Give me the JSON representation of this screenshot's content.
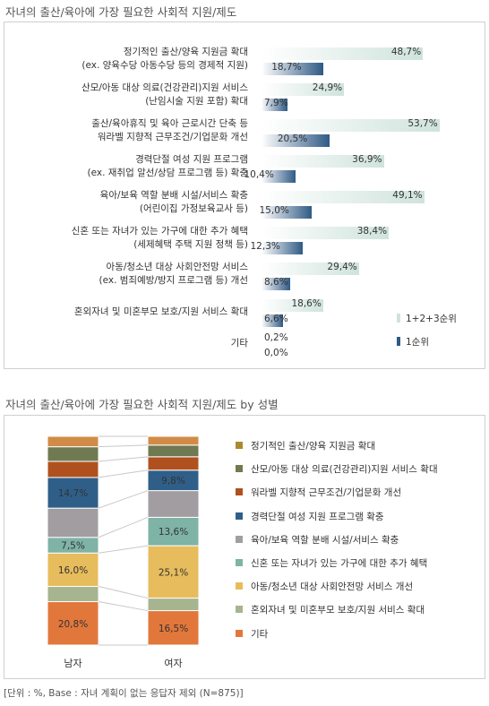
{
  "chart_data": [
    {
      "type": "bar",
      "title": "자녀의 출산/육아에 가장 필요한 사회적 지원/제도",
      "categories": [
        [
          "정기적인 출산/양육 지원금 확대",
          "(ex. 양육수당 아동수당 등의 경제적 지원)"
        ],
        [
          "산모/아동 대상 의료(건강관리)지원 서비스",
          "(난임시술 지원 포함) 확대"
        ],
        [
          "출산/육아휴직 및 육아 근로시간 단축 등",
          "워라벨 지향적 근무조건/기업문화 개선"
        ],
        [
          "경력단절 여성 지원 프로그램",
          "(ex. 재취업 알선/상담 프로그램 등) 확충"
        ],
        [
          "육아/보육 역할 분배 시설/서비스 확충",
          "(어린이집 가정보육교사 등)"
        ],
        [
          "신혼 또는 자녀가 있는 가구에 대한 추가 혜택",
          "(세제혜택 주택 지원 정책 등)"
        ],
        [
          "아동/청소년 대상 사회안전망 서비스",
          "(ex. 범죄예방/방지 프로그램 등) 개선"
        ],
        [
          "혼외자녀 및 미혼부모 보호/지원 서비스 확대"
        ],
        [
          "기타"
        ]
      ],
      "series": [
        {
          "name": "1+2+3순위",
          "values": [
            48.7,
            24.9,
            53.7,
            36.9,
            49.1,
            38.4,
            29.4,
            18.6,
            0.2
          ],
          "labels": [
            "48,7%",
            "24,9%",
            "53,7%",
            "36,9%",
            "49,1%",
            "38,4%",
            "29,4%",
            "18,6%",
            "0,2%"
          ],
          "color": "#cfe3dd"
        },
        {
          "name": "1순위",
          "values": [
            18.7,
            7.9,
            20.5,
            10.4,
            15.0,
            12.3,
            8.6,
            6.6,
            0.0
          ],
          "labels": [
            "18,7%",
            "7,9%",
            "20,5%",
            "10,4%",
            "15,0%",
            "12,3%",
            "8,6%",
            "6,6%",
            "0,0%"
          ],
          "color": "#2f5a85"
        }
      ]
    },
    {
      "type": "bar",
      "stacked": true,
      "percent": true,
      "title": "자녀의 출산/육아에 가장 필요한 사회적 지원/제도 by 성별",
      "categories": [
        "남자",
        "여자"
      ],
      "series": [
        {
          "name": "정기적인 출산/양육 지원금 확대",
          "color": "#e2773b",
          "values": [
            20.8,
            16.5
          ],
          "labels": [
            "20,8%",
            "16,5%"
          ]
        },
        {
          "name": "산모/아동 대상 의료(건강관리)지원 서비스 확대",
          "color": "#a6b58f",
          "values": [
            7.3,
            6.0
          ],
          "labels": [
            "",
            ""
          ]
        },
        {
          "name": "워라벨 지향적 근무조건/기업문화 개선",
          "color": "#e7bc5c",
          "values": [
            16.0,
            25.1
          ],
          "labels": [
            "16,0%",
            "25,1%"
          ]
        },
        {
          "name": "경력단절 여성 지원 프로그램 확충",
          "color": "#7eb3a6",
          "values": [
            7.5,
            13.6
          ],
          "labels": [
            "7,5%",
            "13,6%"
          ]
        },
        {
          "name": "육아/보육 역할 분배 시설/서비스 확충",
          "color": "#a19da1",
          "values": [
            14.0,
            12.8
          ],
          "labels": [
            "",
            ""
          ]
        },
        {
          "name": "신혼 또는 자녀가 있는 가구에 대한 추가 혜택",
          "color": "#2f5f88",
          "values": [
            14.7,
            9.8
          ],
          "labels": [
            "14,7%",
            "9,8%"
          ]
        },
        {
          "name": "아동/청소년 대상 사회안전망 서비스 개선",
          "color": "#b0501f",
          "values": [
            7.7,
            6.4
          ],
          "labels": [
            "",
            ""
          ]
        },
        {
          "name": "혼외자녀 및 미혼부모 보호/지원 서비스 확대",
          "color": "#6f7a52",
          "values": [
            7.0,
            5.6
          ],
          "labels": [
            "",
            ""
          ]
        },
        {
          "name": "기타",
          "color": "#d28b46",
          "values": [
            5.0,
            4.2
          ],
          "labels": [
            "",
            ""
          ]
        }
      ],
      "legend": [
        {
          "name": "정기적인 출산/양육 지원금 확대",
          "color": "#a88b2e"
        },
        {
          "name": "산모/아동 대상 의료(건강관리)지원 서비스 확대",
          "color": "#6f7a52"
        },
        {
          "name": "워라벨 지향적 근무조건/기업문화 개선",
          "color": "#b0501f"
        },
        {
          "name": "경력단절 여성 지원 프로그램 확충",
          "color": "#2f5f88"
        },
        {
          "name": "육아/보육 역할 분배 시설/서비스 확충",
          "color": "#a19da1"
        },
        {
          "name": "신혼 또는 자녀가 있는 가구에 대한 추가 혜택",
          "color": "#7eb3a6"
        },
        {
          "name": "아동/청소년 대상 사회안전망 서비스 개선",
          "color": "#e7bc5c"
        },
        {
          "name": "혼외자녀 및 미혼부모 보호/지원 서비스 확대",
          "color": "#a6b58f"
        },
        {
          "name": "기타",
          "color": "#e2773b"
        }
      ]
    }
  ],
  "source_note": "[단위 : %, Base : 자녀 계획이 없는 응답자 제외 (N=875)]"
}
